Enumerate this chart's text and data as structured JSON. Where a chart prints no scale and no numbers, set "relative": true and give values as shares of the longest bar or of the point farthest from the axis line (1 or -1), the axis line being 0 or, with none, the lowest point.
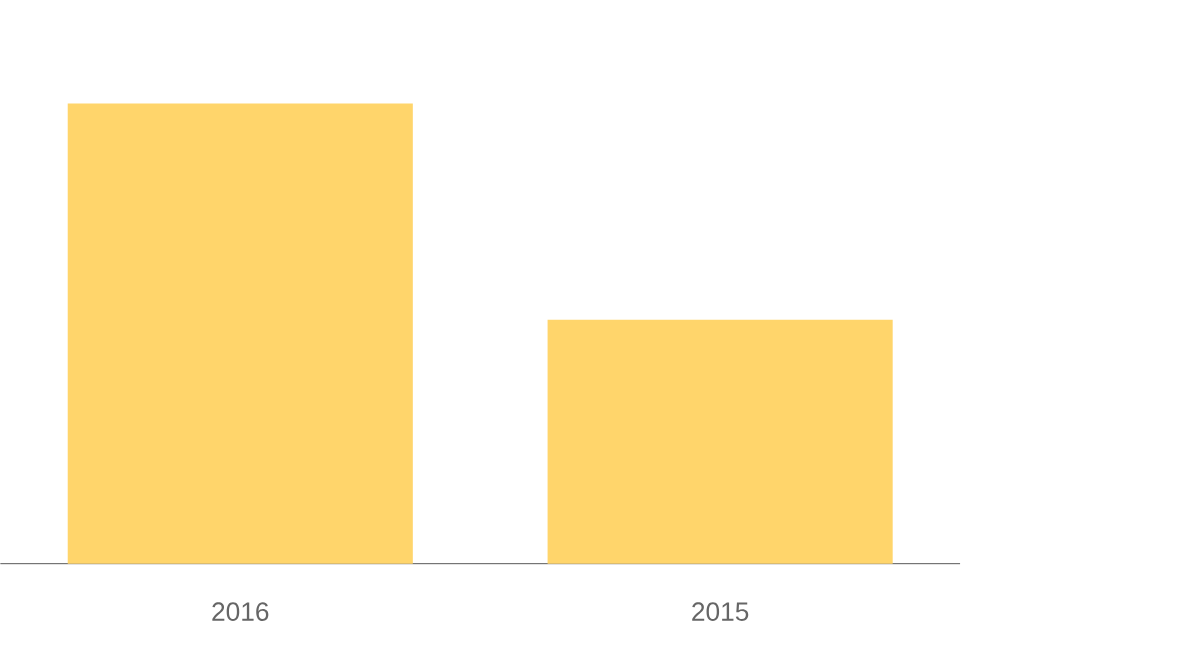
{
  "chart_data": {
    "type": "bar",
    "categories": [
      "2016",
      "2015"
    ],
    "values": [
      1,
      0.53
    ],
    "color": "#ffd56b",
    "relative": true
  }
}
